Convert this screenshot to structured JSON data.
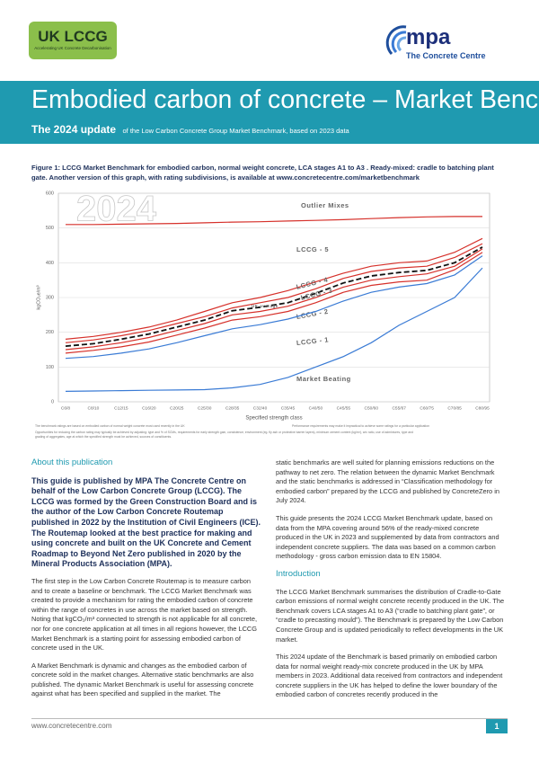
{
  "header": {
    "logo_left": {
      "title": "UK LCCG",
      "subtitle": "Accelerating UK Concrete Decarbonisation"
    },
    "logo_right": {
      "title": "mpa",
      "subtitle": "The Concrete Centre"
    }
  },
  "banner": {
    "title": "Embodied carbon of concrete – Market Benchmark",
    "update": "The 2024 update",
    "update_note": "of the Low Carbon Concrete Group Market Benchmark, based on 2023 data"
  },
  "figure_caption": "Figure 1: LCCG Market Benchmark for embodied carbon, normal weight concrete, LCA stages A1 to A3 . Ready-mixed: cradle to batching plant gate. Another version of this graph, with rating subdivisions, is available at www.concretecentre.com/marketbenchmark",
  "chart_data": {
    "type": "line",
    "watermark": "2024",
    "ylabel": "kgCO₂e/m³",
    "xlabel": "Specified strength class",
    "categories": [
      "C6/8",
      "C8/10",
      "C12/15",
      "C16/20",
      "C20/25",
      "C25/30",
      "C28/35",
      "C32/40",
      "C35/45",
      "C40/50",
      "C45/55",
      "C50/60",
      "C55/67",
      "C60/75",
      "C70/85",
      "C80/95"
    ],
    "ylim": [
      0,
      600
    ],
    "yticks": [
      0,
      100,
      200,
      300,
      400,
      500,
      600
    ],
    "grid": true,
    "series": [
      {
        "name": "Outlier Mixes",
        "color": "#d6312b",
        "values": [
          510,
          510,
          511,
          512,
          513,
          515,
          517,
          518,
          520,
          522,
          524,
          527,
          530,
          532,
          533,
          533
        ]
      },
      {
        "name": "LCCG - 5",
        "color": "#d6312b",
        "values": [
          180,
          188,
          200,
          215,
          235,
          260,
          285,
          300,
          320,
          345,
          370,
          390,
          400,
          405,
          430,
          470
        ]
      },
      {
        "name": "LCCG - 4",
        "color": "#d6312b",
        "values": [
          170,
          178,
          190,
          205,
          225,
          245,
          270,
          285,
          300,
          325,
          355,
          375,
          385,
          390,
          415,
          455
        ]
      },
      {
        "name": "UK average",
        "color": "#111111",
        "dashed": true,
        "values": [
          160,
          167,
          180,
          195,
          215,
          235,
          262,
          272,
          285,
          312,
          342,
          362,
          372,
          378,
          400,
          445
        ]
      },
      {
        "name": "LCCG - 3",
        "color": "#d6312b",
        "values": [
          150,
          158,
          170,
          185,
          205,
          225,
          250,
          260,
          275,
          300,
          330,
          350,
          360,
          368,
          390,
          440
        ]
      },
      {
        "name": "LCCG - 2",
        "color": "#d6312b",
        "values": [
          140,
          148,
          158,
          172,
          192,
          212,
          235,
          245,
          260,
          285,
          315,
          335,
          345,
          350,
          380,
          430
        ]
      },
      {
        "name": "LCCG - 1",
        "color": "#3a7bd5",
        "values": [
          125,
          130,
          140,
          152,
          170,
          190,
          210,
          222,
          238,
          260,
          290,
          315,
          330,
          340,
          365,
          420
        ]
      },
      {
        "name": "Market Beating",
        "color": "#3a7bd5",
        "values": [
          30,
          31,
          32,
          33,
          34,
          35,
          40,
          50,
          70,
          100,
          130,
          170,
          220,
          260,
          300,
          385
        ]
      }
    ],
    "footnotes": [
      "The benchmark ratings are based on embodied carbon of normal weight concrete most used recently in the UK",
      "Performance requirements may make it impractical to achieve some ratings for a particular application",
      "Opportunities for reducing the carbon rating may typically be achieved by adjusting: type and % of SCMs, requirements for early strength gain, consistence, environment (eg. fly ash or protective barrier layers), minimum cement content (kg/m³), w/c ratio, use of admixtures, type and grading of aggregates, age at which the specified strength must be achieved, sources of constituents."
    ]
  },
  "columns": [
    {
      "blocks": [
        {
          "heading": "About this publication"
        },
        {
          "lead": "This guide is published by MPA The Concrete Centre on behalf of the Low Carbon Concrete Group (LCCG). The LCCG was formed by the Green Construction Board and is the author of the Low Carbon Concrete Routemap published in 2022 by the Institution of Civil Engineers (ICE). The Routemap looked at the best practice for making and using concrete and built on the UK Concrete and Cement Roadmap to Beyond Net Zero published in 2020 by the Mineral Products Association (MPA)."
        },
        {
          "text": "The first step in the Low Carbon Concrete Routemap is to measure carbon and to create a baseline or benchmark. The LCCG Market Benchmark was created to provide a mechanism for rating the embodied carbon of concrete within the range of concretes in use across the market based on strength. Noting that kgCO₂/m³ connected to strength is not applicable for all concrete, nor for one concrete application at all times in all regions however, the LCCG Market Benchmark is a starting point for assessing embodied carbon of concrete used in the UK."
        },
        {
          "text": "A Market Benchmark is dynamic and changes as the embodied carbon of concrete sold in the market changes. Alternative static benchmarks are also published. The dynamic Market Benchmark is useful for assessing concrete against what has been specified and supplied in the market. The"
        }
      ]
    },
    {
      "blocks": [
        {
          "text": "static benchmarks are well suited for planning emissions reductions on the pathway to net zero. The relation between the dynamic Market Benchmark and the static benchmarks is addressed in “Classification methodology for embodied carbon” prepared by the LCCG and published by ConcreteZero in July 2024."
        },
        {
          "text": "This guide presents the 2024 LCCG Market Benchmark update, based on data from the MPA covering around 56% of the ready-mixed concrete produced in the UK in 2023 and supplemented by data from contractors and independent concrete suppliers. The data was based on a common carbon methodology - gross carbon emission data to EN 15804."
        },
        {
          "heading": "Introduction"
        },
        {
          "text": "The LCCG Market Benchmark summarises the distribution of Cradle-to-Gate carbon emissions of normal weight concrete recently produced in the UK. The Benchmark covers LCA stages A1 to A3 (“cradle to batching plant gate”, or “cradle to precasting mould”). The Benchmark is prepared by the Low Carbon Concrete Group and is updated periodically to reflect developments in the UK market."
        },
        {
          "text": "This 2024 update of the Benchmark is based primarily on embodied carbon data for normal weight ready-mix concrete produced in the UK by MPA members in 2023. Additional data received from contractors and independent concrete suppliers in the UK has helped to define the lower boundary of the embodied carbon of concretes recently produced in the"
        }
      ]
    }
  ],
  "footer": {
    "url": "www.concretecentre.com",
    "page": "1"
  }
}
